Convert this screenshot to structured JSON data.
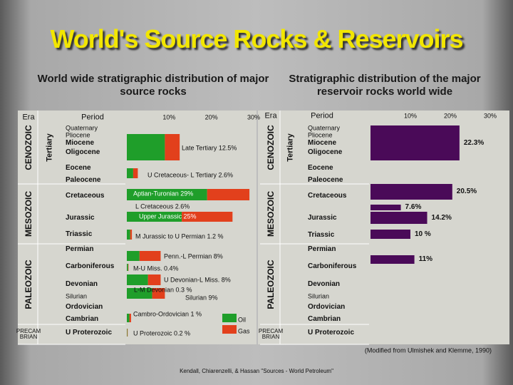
{
  "title": "World's Source Rocks & Reservoirs",
  "chart_data": [
    {
      "type": "bar",
      "stacked": true,
      "title": "World wide stratigraphic distribution of major source rocks",
      "era_header": "Era",
      "period_header": "Period",
      "eras": [
        "CENOZOIC",
        "MESOZOIC",
        "PALEOZOIC",
        "PRECAM BRIAN"
      ],
      "subera": "Tertiary",
      "categories": [
        "Quaternary",
        "Pliocene",
        "Miocene",
        "Oligocene",
        "Eocene",
        "Paleocene",
        "Cretaceous",
        "Jurassic",
        "Triassic",
        "Permian",
        "Carboniferous",
        "Devonian",
        "Silurian",
        "Ordovician",
        "Cambrian",
        "U Proterozoic"
      ],
      "series": [
        {
          "name": "Oil",
          "color": "#1f9e2a",
          "values": [
            null,
            null,
            9,
            null,
            null,
            1.5,
            19,
            13,
            0.8,
            3,
            0.3,
            5,
            6,
            null,
            0.6,
            0.1
          ]
        },
        {
          "name": "Gas",
          "color": "#e2401c",
          "values": [
            null,
            null,
            3.5,
            null,
            null,
            1.1,
            10,
            12,
            0.4,
            5,
            0.1,
            3,
            3,
            null,
            0.4,
            0.1
          ]
        }
      ],
      "xlim": [
        0,
        30
      ],
      "xticks": [
        {
          "value": 10,
          "label": "10%"
        },
        {
          "value": 20,
          "label": "20%"
        },
        {
          "value": 30,
          "label": "30%"
        }
      ],
      "annotations": [
        "Late Tertiary 12.5%",
        "U Cretaceous- L Tertiary 2.6%",
        "Aptian-Turonian 29%",
        "L Cretaceous 2.6%",
        "Upper Jurassic 25%",
        "M Jurassic to U Permian 1.2 %",
        "Penn.-L Permian 8%",
        "M-U Miss. 0.4%",
        "U Devonian-L Miss. 8%",
        "L-M Devonian 0.3 %",
        "Silurian 9%",
        "Cambro-Ordovician 1 %",
        "U Proterozoic 0.2 %"
      ]
    },
    {
      "type": "bar",
      "title": "Stratigraphic distribution of the major reservoir rocks world wide",
      "era_header": "Era",
      "period_header": "Period",
      "eras": [
        "CENOZOIC",
        "MESOZOIC",
        "PALEOZOIC",
        "PRECAM BRIAN"
      ],
      "subera": "Tertiary",
      "categories": [
        "Quaternary",
        "Pliocene",
        "Miocene",
        "Oligocene",
        "Eocene",
        "Paleocene",
        "Cretaceous",
        null,
        "Jurassic",
        "Triassic",
        "Permian",
        "Carboniferous",
        "Devonian",
        "Silurian",
        "Ordovician",
        "Cambrian",
        "U Proterozoic"
      ],
      "values": [
        null,
        null,
        22.3,
        null,
        null,
        null,
        20.5,
        7.6,
        14.2,
        10,
        null,
        11,
        null,
        null,
        null,
        null,
        null
      ],
      "value_labels": [
        null,
        null,
        "22.3%",
        null,
        null,
        null,
        "20.5%",
        "7.6%",
        "14.2%",
        "10 %",
        null,
        "11%",
        null,
        null,
        null,
        null,
        null
      ],
      "color": "#4a0a58",
      "xlim": [
        0,
        30
      ],
      "xticks": [
        {
          "value": 10,
          "label": "10%"
        },
        {
          "value": 20,
          "label": "20%"
        },
        {
          "value": 30,
          "label": "30%"
        }
      ]
    }
  ],
  "source_note": "(Modified from Ulmishek and Klemme, 1990)",
  "credit": "Kendall, Chiarenzelli, & Hassan \"Sources - World Petroleum\""
}
